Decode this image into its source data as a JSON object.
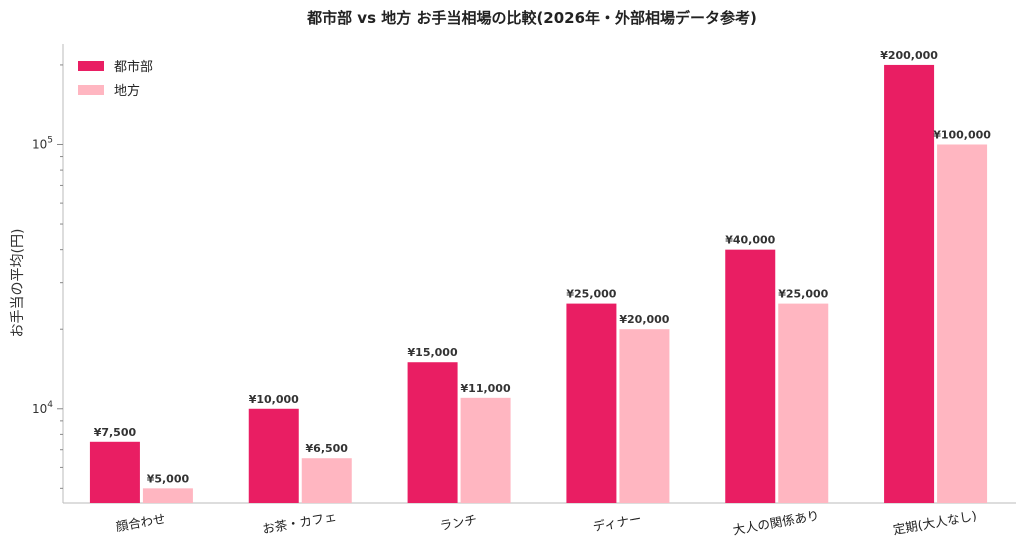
{
  "chart_data": {
    "type": "bar",
    "title": "都市部 vs 地方 お手当相場の比較(2026年・外部相場データ参考)",
    "xlabel": "",
    "ylabel": "お手当の平均(円)",
    "yscale": "log",
    "ylim": [
      4400,
      240000
    ],
    "y_ticks": [
      {
        "value": 10000,
        "base": "10",
        "exp": "4"
      },
      {
        "value": 100000,
        "base": "10",
        "exp": "5"
      }
    ],
    "categories": [
      "顔合わせ",
      "お茶・カフェ",
      "ランチ",
      "ディナー",
      "大人の関係あり",
      "定期(大人なし)"
    ],
    "series": [
      {
        "name": "都市部",
        "color": "#E91E63",
        "values": [
          7500,
          10000,
          15000,
          25000,
          40000,
          200000
        ],
        "labels": [
          "¥7,500",
          "¥10,000",
          "¥15,000",
          "¥25,000",
          "¥40,000",
          "¥200,000"
        ]
      },
      {
        "name": "地方",
        "color": "#FFB6C1",
        "values": [
          5000,
          6500,
          11000,
          20000,
          25000,
          100000
        ],
        "labels": [
          "¥5,000",
          "¥6,500",
          "¥11,000",
          "¥20,000",
          "¥25,000",
          "¥100,000"
        ]
      }
    ],
    "legend_position": "top-left",
    "grid": false
  }
}
